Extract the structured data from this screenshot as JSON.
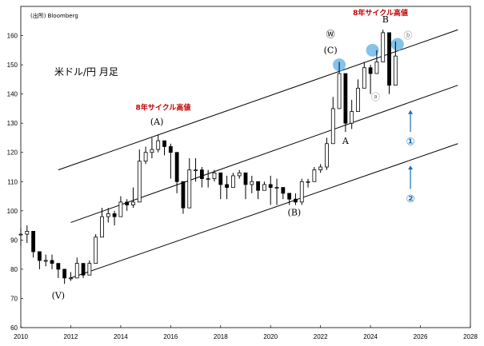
{
  "chart_data": {
    "type": "candlestick",
    "title": "米ドル/円 月足",
    "source": "(出所) Bloomberg",
    "xlabel": "",
    "ylabel": "",
    "xlim": [
      2010,
      2028
    ],
    "ylim": [
      60,
      170
    ],
    "x_ticks": [
      "2010",
      "2012",
      "2014",
      "2016",
      "2018",
      "2020",
      "2022",
      "2024",
      "2026",
      "2028"
    ],
    "y_ticks": [
      "60",
      "70",
      "80",
      "90",
      "100",
      "110",
      "120",
      "130",
      "140",
      "150",
      "160"
    ],
    "grid": false,
    "colors": {
      "bars": "#000000",
      "channel": "#000000",
      "highlight": "#6fb8e8",
      "red": "#c00000",
      "blue": "#1b6fb5",
      "gray": "#7f7f7f"
    },
    "series": [
      {
        "x": [
          2010.0,
          2010.25,
          2010.5,
          2010.75,
          2011.0,
          2011.25,
          2011.5,
          2011.75,
          2012.0,
          2012.25,
          2012.5,
          2012.75,
          2013.0,
          2013.25,
          2013.5,
          2013.75,
          2014.0,
          2014.25,
          2014.5,
          2014.75,
          2015.0,
          2015.25,
          2015.5,
          2015.75,
          2016.0,
          2016.25,
          2016.5,
          2016.75,
          2017.0,
          2017.25,
          2017.5,
          2017.75,
          2018.0,
          2018.25,
          2018.5,
          2018.75,
          2019.0,
          2019.25,
          2019.5,
          2019.75,
          2020.0,
          2020.25,
          2020.5,
          2020.75,
          2021.0,
          2021.25,
          2021.5,
          2021.75,
          2022.0,
          2022.25,
          2022.5,
          2022.75,
          2023.0,
          2023.25,
          2023.5,
          2023.75,
          2024.0,
          2024.25,
          2024.5,
          2024.75,
          2025.0
        ],
        "close": [
          92,
          93,
          86,
          83,
          83,
          82,
          80,
          77,
          77,
          82,
          78,
          82,
          91,
          98,
          99,
          98,
          103,
          102,
          103,
          117,
          120,
          121,
          124,
          122,
          120,
          110,
          101,
          114,
          114,
          111,
          111,
          113,
          109,
          108,
          112,
          113,
          109,
          110,
          107,
          109,
          108,
          108,
          106,
          104,
          103,
          110,
          110,
          114,
          115,
          123,
          135,
          147,
          130,
          134,
          142,
          149,
          147,
          151,
          161,
          143,
          153
        ],
        "low": [
          88,
          89,
          84,
          80,
          81,
          80,
          77,
          75,
          76,
          78,
          77,
          78,
          86,
          93,
          96,
          95,
          100,
          100,
          101,
          106,
          116,
          118,
          120,
          119,
          111,
          106,
          99,
          101,
          110,
          108,
          108,
          110,
          104,
          104,
          109,
          111,
          104,
          106,
          104,
          107,
          102,
          102,
          104,
          102,
          102,
          102,
          108,
          110,
          113,
          114,
          126,
          138,
          127,
          128,
          137,
          145,
          140,
          148,
          151,
          140,
          147
        ],
        "high": [
          94,
          95,
          92,
          85,
          85,
          85,
          81,
          80,
          79,
          84,
          82,
          83,
          92,
          101,
          101,
          100,
          105,
          104,
          108,
          121,
          122,
          125,
          126,
          124,
          123,
          112,
          108,
          118,
          118,
          115,
          114,
          114,
          113,
          112,
          113,
          114,
          112,
          112,
          110,
          110,
          112,
          111,
          108,
          106,
          106,
          111,
          111,
          115,
          116,
          125,
          139,
          151,
          134,
          138,
          145,
          151,
          150,
          155,
          162,
          153,
          158
        ]
      }
    ],
    "channel_lines": [
      {
        "name": "upper",
        "points": [
          [
            2011.5,
            114
          ],
          [
            2027.5,
            162
          ]
        ]
      },
      {
        "name": "middle",
        "points": [
          [
            2012.0,
            96
          ],
          [
            2027.5,
            143
          ]
        ]
      },
      {
        "name": "lower",
        "points": [
          [
            2012.0,
            77
          ],
          [
            2027.5,
            123
          ]
        ]
      }
    ],
    "annotations": [
      {
        "text": "(V)",
        "x": 2011.5,
        "y": 70
      },
      {
        "text": "(A)",
        "x": 2015.45,
        "y": 129.5
      },
      {
        "text": "(B)",
        "x": 2020.95,
        "y": 98.5
      },
      {
        "text": "(C)",
        "x": 2022.4,
        "y": 154
      },
      {
        "text": "Ⓦ",
        "x": 2022.4,
        "y": 159.5
      },
      {
        "text": "A",
        "x": 2023.0,
        "y": 123
      },
      {
        "text": "B",
        "x": 2024.6,
        "y": 164.5
      },
      {
        "text": "ⓑ",
        "x": 2025.5,
        "y": 159
      },
      {
        "text": "ⓐ",
        "x": 2024.2,
        "y": 138
      }
    ],
    "red_labels": [
      {
        "text": "8年サイクル高値",
        "x": 2015.7,
        "y": 134.5
      },
      {
        "text": "8年サイクル高値",
        "x": 2024.4,
        "y": 167
      }
    ],
    "blue_labels": [
      {
        "text": "①",
        "x": 2025.6,
        "y": 122.5
      },
      {
        "text": "②",
        "x": 2025.6,
        "y": 103
      }
    ],
    "blue_arrows": [
      {
        "from": [
          2025.6,
          127
        ],
        "to": [
          2025.6,
          134.5
        ]
      },
      {
        "from": [
          2025.6,
          107.5
        ],
        "to": [
          2025.6,
          115.5
        ]
      }
    ],
    "highlights": [
      {
        "x": 2022.75,
        "y": 150
      },
      {
        "x": 2024.08,
        "y": 155
      },
      {
        "x": 2025.08,
        "y": 157
      }
    ]
  }
}
